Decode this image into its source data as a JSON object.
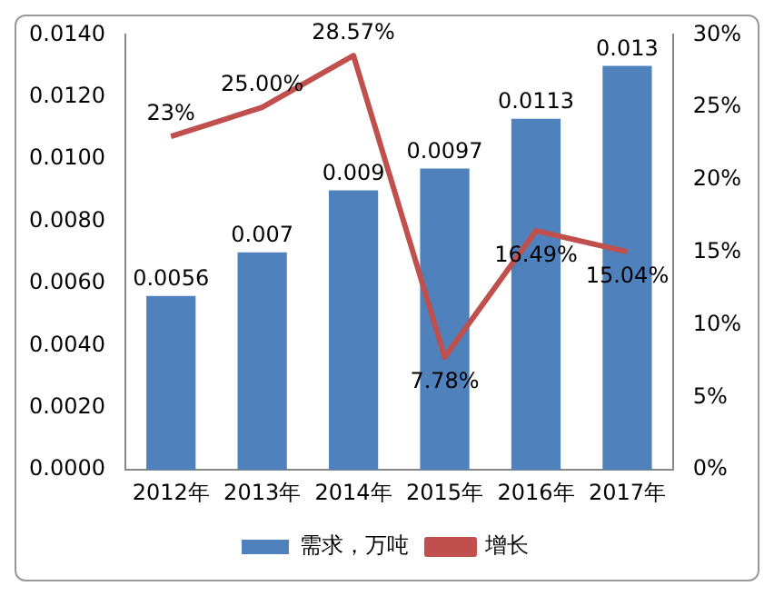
{
  "chart_data": {
    "type": "bar",
    "categories": [
      "2012年",
      "2013年",
      "2014年",
      "2015年",
      "2016年",
      "2017年"
    ],
    "series": [
      {
        "name": "需求，万吨",
        "type": "bar",
        "color": "#4f81bd",
        "values": [
          0.0056,
          0.007,
          0.009,
          0.0097,
          0.0113,
          0.013
        ],
        "value_labels": [
          "0.0056",
          "0.007",
          "0.009",
          "0.0097",
          "0.0113",
          "0.013"
        ]
      },
      {
        "name": "增长",
        "type": "line",
        "axis": "y2",
        "color": "#c0504d",
        "values": [
          23,
          25.0,
          28.57,
          7.78,
          16.49,
          15.04
        ],
        "value_labels": [
          "23%",
          "25.00%",
          "28.57%",
          "7.78%",
          "16.49%",
          "15.04%"
        ]
      }
    ],
    "ylim": [
      0,
      0.014
    ],
    "yticks": [
      {
        "value": 0,
        "label": "0.0000"
      },
      {
        "value": 0.002,
        "label": "0.0020"
      },
      {
        "value": 0.004,
        "label": "0.0040"
      },
      {
        "value": 0.006,
        "label": "0.0060"
      },
      {
        "value": 0.008,
        "label": "0.0080"
      },
      {
        "value": 0.01,
        "label": "0.0100"
      },
      {
        "value": 0.012,
        "label": "0.0120"
      },
      {
        "value": 0.014,
        "label": "0.0140"
      }
    ],
    "y2lim": [
      0,
      30
    ],
    "y2ticks": [
      {
        "value": 0,
        "label": "0%"
      },
      {
        "value": 5,
        "label": "5%"
      },
      {
        "value": 10,
        "label": "10%"
      },
      {
        "value": 15,
        "label": "15%"
      },
      {
        "value": 20,
        "label": "20%"
      },
      {
        "value": 25,
        "label": "25%"
      },
      {
        "value": 30,
        "label": "30%"
      }
    ],
    "grid": false,
    "legend": "bottom",
    "marker": "none"
  }
}
